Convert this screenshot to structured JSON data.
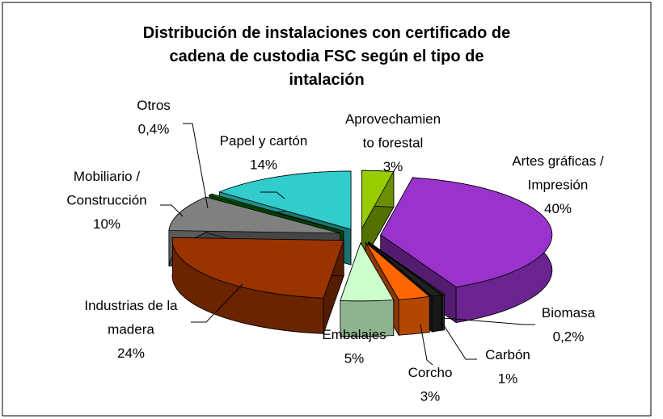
{
  "chart_data": {
    "type": "pie3d",
    "title": "Distribución de instalaciones con certificado de\ncadena de custodia FSC según el tipo de\nintalación",
    "categories": [
      "Aprovechamien\nto forestal",
      "Artes gráficas /\nImpresión",
      "Biomasa",
      "Carbón",
      "Corcho",
      "Embalajes",
      "Industrias de la\nmadera",
      "Mobiliario /\nConstrucción",
      "Otros",
      "Papel y cartón"
    ],
    "values": [
      3,
      40,
      0.2,
      1,
      3,
      5,
      24,
      10,
      0.4,
      14
    ],
    "value_labels": [
      "3%",
      "40%",
      "0,2%",
      "1%",
      "3%",
      "5%",
      "24%",
      "10%",
      "0,4%",
      "14%"
    ],
    "colors": [
      "#99cc00",
      "#9933cc",
      "#404040",
      "#222222",
      "#ff6600",
      "#ccffcc",
      "#993300",
      "#808080",
      "#008000",
      "#33cccc"
    ]
  }
}
